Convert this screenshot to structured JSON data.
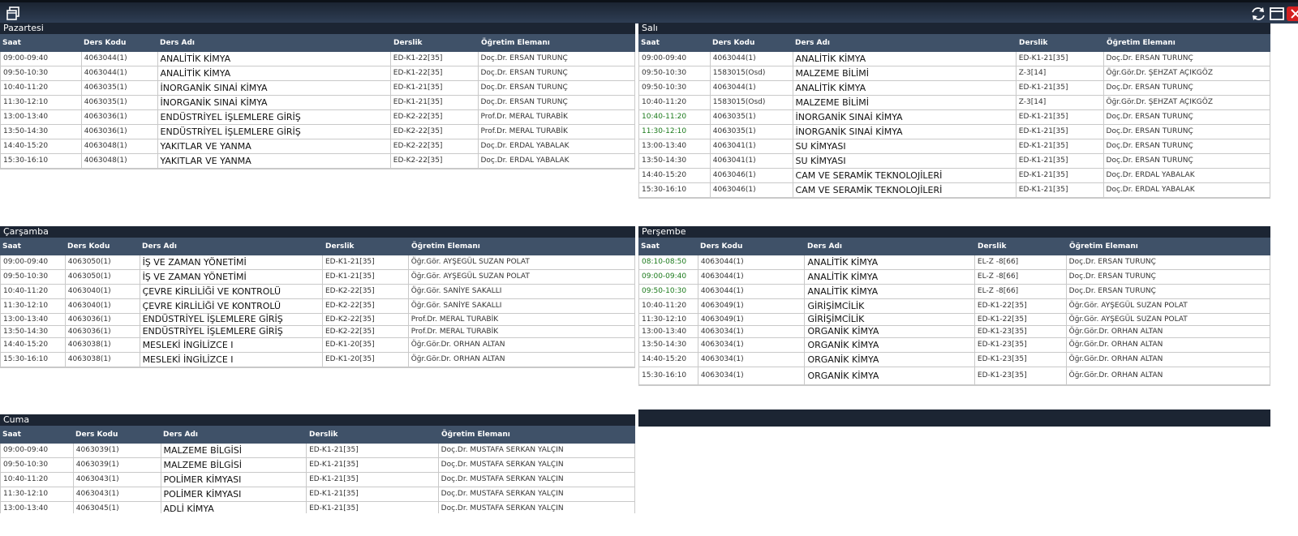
{
  "toolbar": {
    "left_icon": "window-restore-icon",
    "right_icons": [
      "refresh-icon",
      "maximize-icon",
      "close-icon"
    ],
    "accent_close": "#d42020"
  },
  "columns": {
    "saat": "Saat",
    "kod": "Ders Kodu",
    "ad": "Ders Adı",
    "derslik": "Derslik",
    "ogretim": "Öğretim Elemanı"
  },
  "days": {
    "pazartesi": {
      "title": "Pazartesi",
      "rows": [
        {
          "saat": "09:00-09:40",
          "kod": "4063044(1)",
          "ad": "ANALİTİK KİMYA",
          "derslik": "ED-K1-22[35]",
          "ogretim": "Doç.Dr. ERSAN TURUNÇ"
        },
        {
          "saat": "09:50-10:30",
          "kod": "4063044(1)",
          "ad": "ANALİTİK KİMYA",
          "derslik": "ED-K1-22[35]",
          "ogretim": "Doç.Dr. ERSAN TURUNÇ"
        },
        {
          "saat": "10:40-11:20",
          "kod": "4063035(1)",
          "ad": "İNORGANİK SINAİ KİMYA",
          "derslik": "ED-K1-21[35]",
          "ogretim": "Doç.Dr. ERSAN TURUNÇ"
        },
        {
          "saat": "11:30-12:10",
          "kod": "4063035(1)",
          "ad": "İNORGANİK SINAİ KİMYA",
          "derslik": "ED-K1-21[35]",
          "ogretim": "Doç.Dr. ERSAN TURUNÇ"
        },
        {
          "saat": "13:00-13:40",
          "kod": "4063036(1)",
          "ad": "ENDÜSTRİYEL İŞLEMLERE GİRİŞ",
          "derslik": "ED-K2-22[35]",
          "ogretim": "Prof.Dr. MERAL TURABİK"
        },
        {
          "saat": "13:50-14:30",
          "kod": "4063036(1)",
          "ad": "ENDÜSTRİYEL İŞLEMLERE GİRİŞ",
          "derslik": "ED-K2-22[35]",
          "ogretim": "Prof.Dr. MERAL TURABİK"
        },
        {
          "saat": "14:40-15:20",
          "kod": "4063048(1)",
          "ad": "YAKITLAR VE YANMA",
          "derslik": "ED-K2-22[35]",
          "ogretim": "Doç.Dr. ERDAL YABALAK"
        },
        {
          "saat": "15:30-16:10",
          "kod": "4063048(1)",
          "ad": "YAKITLAR VE YANMA",
          "derslik": "ED-K2-22[35]",
          "ogretim": "Doç.Dr. ERDAL YABALAK"
        }
      ]
    },
    "sali": {
      "title": "Salı",
      "rows": [
        {
          "saat": "09:00-09:40",
          "kod": "4063044(1)",
          "ad": "ANALİTİK KİMYA",
          "derslik": "ED-K1-21[35]",
          "ogretim": "Doç.Dr. ERSAN TURUNÇ"
        },
        {
          "saat": "09:50-10:30",
          "kod": "1583015(Osd)",
          "ad": "MALZEME BİLİMİ",
          "derslik": "Z-3[14]",
          "ogretim": "Öğr.Gör.Dr. ŞEHZAT AÇIKGÖZ"
        },
        {
          "saat": "09:50-10:30",
          "kod": "4063044(1)",
          "ad": "ANALİTİK KİMYA",
          "derslik": "ED-K1-21[35]",
          "ogretim": "Doç.Dr. ERSAN TURUNÇ"
        },
        {
          "saat": "10:40-11:20",
          "kod": "1583015(Osd)",
          "ad": "MALZEME BİLİMİ",
          "derslik": "Z-3[14]",
          "ogretim": "Öğr.Gör.Dr. ŞEHZAT AÇIKGÖZ"
        },
        {
          "saat": "10:40-11:20",
          "kod": "4063035(1)",
          "ad": "İNORGANİK SINAİ KİMYA",
          "derslik": "ED-K1-21[35]",
          "ogretim": "Doç.Dr. ERSAN TURUNÇ",
          "green": true
        },
        {
          "saat": "11:30-12:10",
          "kod": "4063035(1)",
          "ad": "İNORGANİK SINAİ KİMYA",
          "derslik": "ED-K1-21[35]",
          "ogretim": "Doç.Dr. ERSAN TURUNÇ",
          "green": true
        },
        {
          "saat": "13:00-13:40",
          "kod": "4063041(1)",
          "ad": "SU KİMYASI",
          "derslik": "ED-K1-21[35]",
          "ogretim": "Doç.Dr. ERSAN TURUNÇ"
        },
        {
          "saat": "13:50-14:30",
          "kod": "4063041(1)",
          "ad": "SU KİMYASI",
          "derslik": "ED-K1-21[35]",
          "ogretim": "Doç.Dr. ERSAN TURUNÇ"
        },
        {
          "saat": "14:40-15:20",
          "kod": "4063046(1)",
          "ad": "CAM VE SERAMİK TEKNOLOJİLERİ",
          "derslik": "ED-K1-21[35]",
          "ogretim": "Doç.Dr. ERDAL YABALAK"
        },
        {
          "saat": "15:30-16:10",
          "kod": "4063046(1)",
          "ad": "CAM VE SERAMİK TEKNOLOJİLERİ",
          "derslik": "ED-K1-21[35]",
          "ogretim": "Doç.Dr. ERDAL YABALAK"
        }
      ]
    },
    "carsamba": {
      "title": "Çarşamba",
      "rows": [
        {
          "saat": "09:00-09:40",
          "kod": "4063050(1)",
          "ad": "İŞ VE ZAMAN YÖNETİMİ",
          "derslik": "ED-K1-21[35]",
          "ogretim": "Öğr.Gör. AYŞEGÜL SUZAN POLAT"
        },
        {
          "saat": "09:50-10:30",
          "kod": "4063050(1)",
          "ad": "İŞ VE ZAMAN YÖNETİMİ",
          "derslik": "ED-K1-21[35]",
          "ogretim": "Öğr.Gör. AYŞEGÜL SUZAN POLAT"
        },
        {
          "saat": "10:40-11:20",
          "kod": "4063040(1)",
          "ad": "ÇEVRE KİRLİLİĞİ VE KONTROLÜ",
          "derslik": "ED-K2-22[35]",
          "ogretim": "Öğr.Gör. SANİYE SAKALLI"
        },
        {
          "saat": "11:30-12:10",
          "kod": "4063040(1)",
          "ad": "ÇEVRE KİRLİLİĞİ VE KONTROLÜ",
          "derslik": "ED-K2-22[35]",
          "ogretim": "Öğr.Gör. SANİYE SAKALLI"
        },
        {
          "saat": "13:00-13:40",
          "kod": "4063036(1)",
          "ad": "ENDÜSTRİYEL İŞLEMLERE GİRİŞ",
          "derslik": "ED-K2-22[35]",
          "ogretim": "Prof.Dr. MERAL TURABİK"
        },
        {
          "saat": "13:50-14:30",
          "kod": "4063036(1)",
          "ad": "ENDÜSTRİYEL İŞLEMLERE GİRİŞ",
          "derslik": "ED-K2-22[35]",
          "ogretim": "Prof.Dr. MERAL TURABİK"
        },
        {
          "saat": "14:40-15:20",
          "kod": "4063038(1)",
          "ad": "MESLEKİ İNGİLİZCE I",
          "derslik": "ED-K1-20[35]",
          "ogretim": "Öğr.Gör.Dr. ORHAN ALTAN"
        },
        {
          "saat": "15:30-16:10",
          "kod": "4063038(1)",
          "ad": "MESLEKİ İNGİLİZCE I",
          "derslik": "ED-K1-20[35]",
          "ogretim": "Öğr.Gör.Dr. ORHAN ALTAN"
        }
      ]
    },
    "persembe": {
      "title": "Perşembe",
      "rows": [
        {
          "saat": "08:10-08:50",
          "kod": "4063044(1)",
          "ad": "ANALİTİK KİMYA",
          "derslik": "EL-Z -8[66]",
          "ogretim": "Doç.Dr. ERSAN TURUNÇ",
          "green": true
        },
        {
          "saat": "09:00-09:40",
          "kod": "4063044(1)",
          "ad": "ANALİTİK KİMYA",
          "derslik": "EL-Z -8[66]",
          "ogretim": "Doç.Dr. ERSAN TURUNÇ",
          "green": true
        },
        {
          "saat": "09:50-10:30",
          "kod": "4063044(1)",
          "ad": "ANALİTİK KİMYA",
          "derslik": "EL-Z -8[66]",
          "ogretim": "Doç.Dr. ERSAN TURUNÇ",
          "green": true
        },
        {
          "saat": "10:40-11:20",
          "kod": "4063049(1)",
          "ad": "GİRİŞİMCİLİK",
          "derslik": "ED-K1-22[35]",
          "ogretim": "Öğr.Gör. AYŞEGÜL SUZAN POLAT"
        },
        {
          "saat": "11:30-12:10",
          "kod": "4063049(1)",
          "ad": "GİRİŞİMCİLİK",
          "derslik": "ED-K1-22[35]",
          "ogretim": "Öğr.Gör. AYŞEGÜL SUZAN POLAT"
        },
        {
          "saat": "13:00-13:40",
          "kod": "4063034(1)",
          "ad": "ORGANİK KİMYA",
          "derslik": "ED-K1-23[35]",
          "ogretim": "Öğr.Gör.Dr. ORHAN ALTAN"
        },
        {
          "saat": "13:50-14:30",
          "kod": "4063034(1)",
          "ad": "ORGANİK KİMYA",
          "derslik": "ED-K1-23[35]",
          "ogretim": "Öğr.Gör.Dr. ORHAN ALTAN"
        },
        {
          "saat": "14:40-15:20",
          "kod": "4063034(1)",
          "ad": "ORGANİK KİMYA",
          "derslik": "ED-K1-23[35]",
          "ogretim": "Öğr.Gör.Dr. ORHAN ALTAN"
        },
        {
          "saat": "15:30-16:10",
          "kod": "4063034(1)",
          "ad": "ORGANİK KİMYA",
          "derslik": "ED-K1-23[35]",
          "ogretim": "Öğr.Gör.Dr. ORHAN ALTAN"
        }
      ]
    },
    "cuma": {
      "title": "Cuma",
      "rows": [
        {
          "saat": "09:00-09:40",
          "kod": "4063039(1)",
          "ad": "MALZEME BİLGİSİ",
          "derslik": "ED-K1-21[35]",
          "ogretim": "Doç.Dr. MUSTAFA SERKAN YALÇIN"
        },
        {
          "saat": "09:50-10:30",
          "kod": "4063039(1)",
          "ad": "MALZEME BİLGİSİ",
          "derslik": "ED-K1-21[35]",
          "ogretim": "Doç.Dr. MUSTAFA SERKAN YALÇIN"
        },
        {
          "saat": "10:40-11:20",
          "kod": "4063043(1)",
          "ad": "POLİMER KİMYASI",
          "derslik": "ED-K1-21[35]",
          "ogretim": "Doç.Dr. MUSTAFA SERKAN YALÇIN"
        },
        {
          "saat": "11:30-12:10",
          "kod": "4063043(1)",
          "ad": "POLİMER KİMYASI",
          "derslik": "ED-K1-21[35]",
          "ogretim": "Doç.Dr. MUSTAFA SERKAN YALÇIN"
        },
        {
          "saat": "13:00-13:40",
          "kod": "4063045(1)",
          "ad": "ADLİ KİMYA",
          "derslik": "ED-K1-21[35]",
          "ogretim": "Doç.Dr. MUSTAFA SERKAN YALÇIN"
        }
      ]
    }
  }
}
